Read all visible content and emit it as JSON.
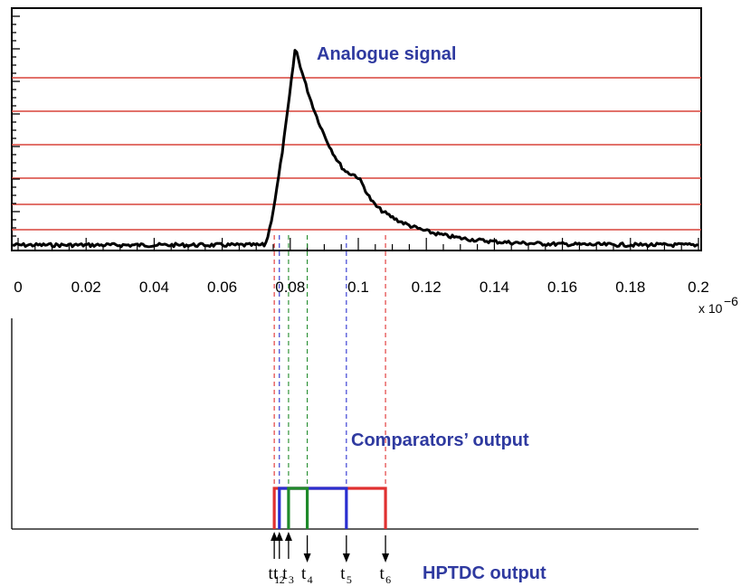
{
  "labels": {
    "analogue": "Analogue signal",
    "comparators": "Comparators’ output",
    "hptdc": "HPTDC output",
    "exponent_base": "x 10",
    "exponent_power": "−6"
  },
  "axis": {
    "x_ticks": [
      "0",
      "0.02",
      "0.04",
      "0.06",
      "0.08",
      "0.1",
      "0.12",
      "0.14",
      "0.16",
      "0.18",
      "0.2"
    ],
    "x_range": [
      0,
      0.2
    ]
  },
  "thresholds": {
    "color": "#d9433a",
    "count": 7
  },
  "timestamps": [
    {
      "label": "t",
      "sub": "1",
      "x": 0.0753,
      "color": "#e03030"
    },
    {
      "label": "t",
      "sub": "2",
      "x": 0.0768,
      "color": "#2a2fd0"
    },
    {
      "label": "t",
      "sub": "3",
      "x": 0.0795,
      "color": "#1f8a2a"
    },
    {
      "label": "t",
      "sub": "4",
      "x": 0.085,
      "color": "#1f8a2a"
    },
    {
      "label": "t",
      "sub": "5",
      "x": 0.0965,
      "color": "#2a2fd0"
    },
    {
      "label": "t",
      "sub": "6",
      "x": 0.108,
      "color": "#e03030"
    }
  ],
  "colors": {
    "signal": "#000000",
    "text_blue": "#2f3aa0"
  }
}
